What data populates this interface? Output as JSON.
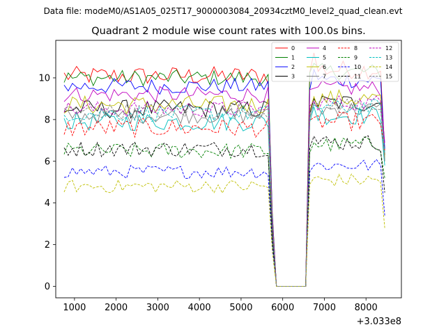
{
  "figure": {
    "suptitle": "Data file: modeM0/AS1A05_025T17_9000003084_20934cztM0_level2_quad_clean.evt"
  },
  "chart_data": {
    "type": "line",
    "title": "Quadrant 2 module wise count rates with 100.0s bins.",
    "xlabel": "",
    "ylabel": "",
    "x_offset_label": "+3.033e8",
    "xlim": [
      550,
      8850
    ],
    "ylim": [
      -0.55,
      11.8
    ],
    "xticks": [
      1000,
      2000,
      3000,
      4000,
      5000,
      6000,
      7000,
      8000
    ],
    "xtick_labels": [
      "1000",
      "2000",
      "3000",
      "4000",
      "5000",
      "6000",
      "7000",
      "8000"
    ],
    "yticks": [
      0,
      2,
      4,
      6,
      8,
      10
    ],
    "ytick_labels": [
      "0",
      "2",
      "4",
      "6",
      "8",
      "10"
    ],
    "grid": false,
    "legend_position": "top-right",
    "x_start": 750,
    "x_step": 100,
    "x_end": 8450,
    "gap": {
      "drop_start": 5750,
      "zero_from": 5850,
      "zero_to": 6550,
      "rise_end": 6750
    },
    "series": [
      {
        "name": "0",
        "color": "#ff0000",
        "dash": "solid",
        "mean": 10.1,
        "amp": 0.35,
        "post": 11.2,
        "end": 6.5
      },
      {
        "name": "1",
        "color": "#008000",
        "dash": "solid",
        "mean": 10.0,
        "amp": 0.3,
        "post": 10.7,
        "end": 6.0
      },
      {
        "name": "2",
        "color": "#0000ff",
        "dash": "solid",
        "mean": 9.6,
        "amp": 0.3,
        "post": 10.4,
        "end": 6.6
      },
      {
        "name": "3",
        "color": "#000000",
        "dash": "solid",
        "mean": 8.5,
        "amp": 0.35,
        "post": 9.0,
        "end": 6.3
      },
      {
        "name": "4",
        "color": "#bf00bf",
        "dash": "solid",
        "mean": 9.2,
        "amp": 0.3,
        "post": 9.5,
        "end": 6.9
      },
      {
        "name": "5",
        "color": "#00bfbf",
        "dash": "solid",
        "mean": 7.9,
        "amp": 0.35,
        "post": 8.6,
        "end": 5.8
      },
      {
        "name": "6",
        "color": "#bfbf00",
        "dash": "solid",
        "mean": 8.7,
        "amp": 0.35,
        "post": 9.1,
        "end": 6.2
      },
      {
        "name": "7",
        "color": "#808080",
        "dash": "solid",
        "mean": 8.2,
        "amp": 0.3,
        "post": 8.8,
        "end": 6.0
      },
      {
        "name": "8",
        "color": "#ff0000",
        "dash": "dashed",
        "mean": 7.6,
        "amp": 0.35,
        "post": 8.1,
        "end": 6.5
      },
      {
        "name": "9",
        "color": "#008000",
        "dash": "dashed",
        "mean": 6.5,
        "amp": 0.3,
        "post": 6.9,
        "end": 5.2
      },
      {
        "name": "10",
        "color": "#0000ff",
        "dash": "dashed",
        "mean": 5.5,
        "amp": 0.25,
        "post": 5.8,
        "end": 3.4
      },
      {
        "name": "11",
        "color": "#000000",
        "dash": "dashed",
        "mean": 6.6,
        "amp": 0.3,
        "post": 7.2,
        "end": 4.5
      },
      {
        "name": "12",
        "color": "#bf00bf",
        "dash": "dashed",
        "mean": 8.5,
        "amp": 0.3,
        "post": 8.9,
        "end": 6.8
      },
      {
        "name": "13",
        "color": "#00bfbf",
        "dash": "dashed",
        "mean": 8.3,
        "amp": 0.3,
        "post": 8.7,
        "end": 6.4
      },
      {
        "name": "14",
        "color": "#bfbf00",
        "dash": "dashed",
        "mean": 4.8,
        "amp": 0.25,
        "post": 5.2,
        "end": 2.8
      },
      {
        "name": "15",
        "color": "#808080",
        "dash": "dashed",
        "mean": 8.4,
        "amp": 0.3,
        "post": 8.8,
        "end": 6.1
      }
    ]
  }
}
